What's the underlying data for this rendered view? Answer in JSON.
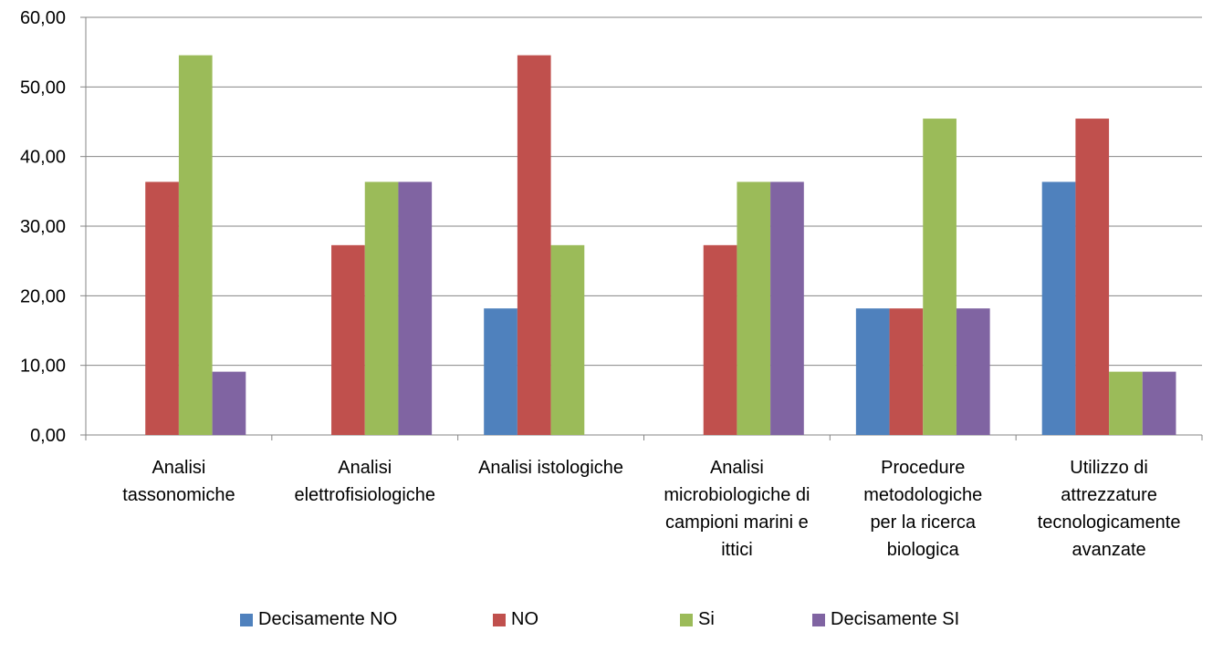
{
  "chart_data": {
    "type": "bar",
    "categories": [
      [
        "Analisi",
        "tassonomiche"
      ],
      [
        "Analisi",
        "elettrofisiologiche"
      ],
      [
        "Analisi istologiche"
      ],
      [
        "Analisi",
        "microbiologiche di",
        "campioni marini e",
        "ittici"
      ],
      [
        "Procedure",
        "metodologiche",
        "per la ricerca",
        "biologica"
      ],
      [
        "Utilizzo di",
        "attrezzature",
        "tecnologicamente",
        "avanzate"
      ]
    ],
    "series": [
      {
        "name": "Decisamente NO",
        "color": "#4F81BD",
        "values": [
          0,
          0,
          18.18,
          0,
          18.18,
          36.36
        ]
      },
      {
        "name": "NO",
        "color": "#C0504D",
        "values": [
          36.36,
          27.27,
          54.55,
          27.27,
          18.18,
          45.45
        ]
      },
      {
        "name": "Si",
        "color": "#9BBB59",
        "values": [
          54.55,
          36.36,
          27.27,
          36.36,
          45.45,
          9.09
        ]
      },
      {
        "name": "Decisamente SI",
        "color": "#8064A2",
        "values": [
          9.09,
          36.36,
          0,
          36.36,
          18.18,
          9.09
        ]
      }
    ],
    "yticks": [
      "0,00",
      "10,00",
      "20,00",
      "30,00",
      "40,00",
      "50,00",
      "60,00"
    ],
    "ylim": [
      0,
      60
    ],
    "grid": true,
    "legend_position": "bottom",
    "title": "",
    "xlabel": "",
    "ylabel": ""
  }
}
